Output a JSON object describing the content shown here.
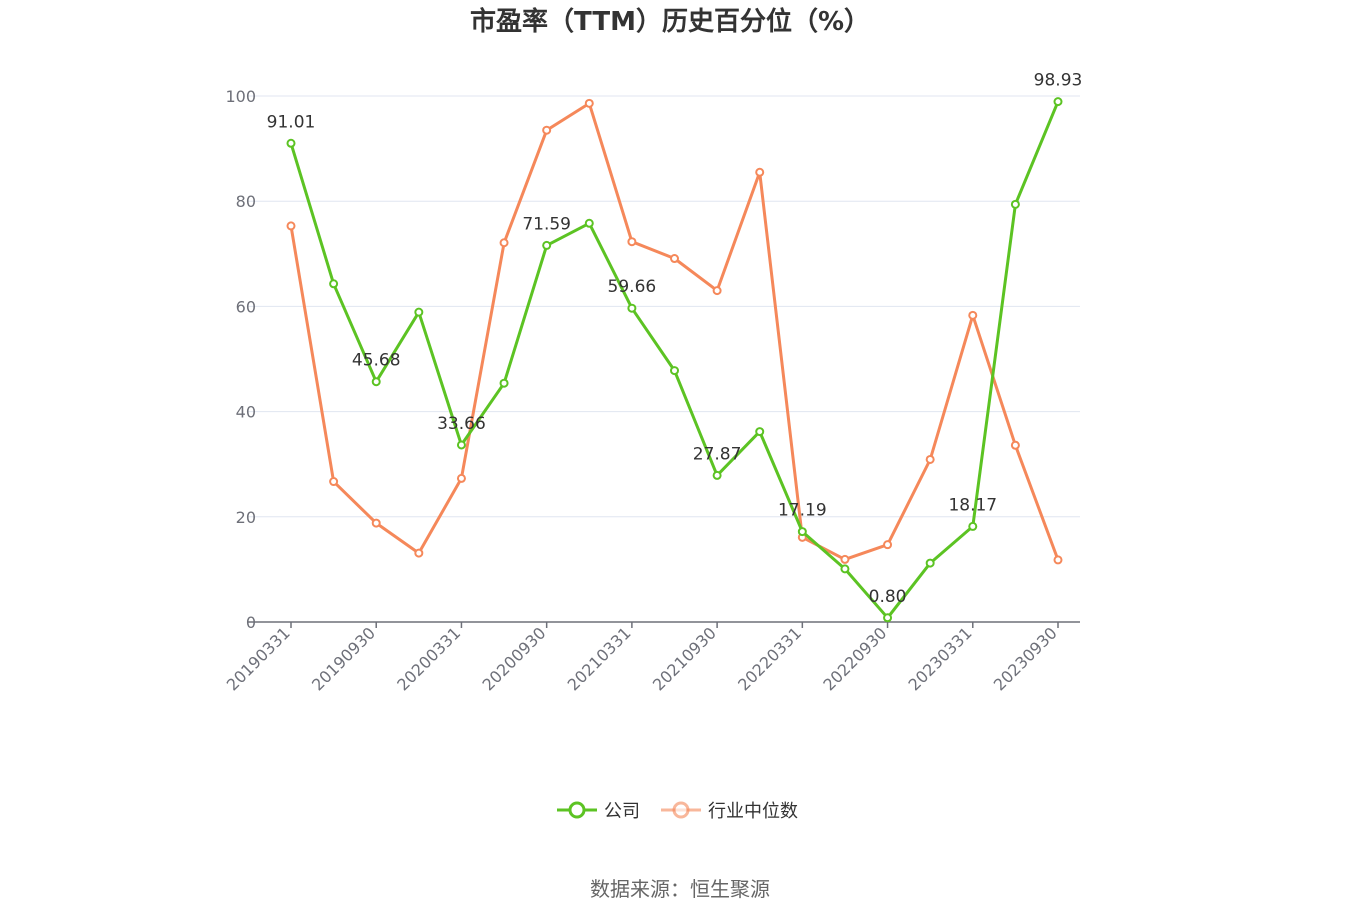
{
  "chart_data": {
    "type": "line",
    "title": "市盈率（TTM）历史百分位（%）",
    "source_text": "数据来源：恒生聚源",
    "ylim": [
      0,
      100
    ],
    "y_ticks": [
      0,
      20,
      40,
      60,
      80,
      100
    ],
    "x": [
      "20190331",
      "20190630",
      "20190930",
      "20191231",
      "20200331",
      "20200630",
      "20200930",
      "20201231",
      "20210331",
      "20210630",
      "20210930",
      "20211231",
      "20220331",
      "20220630",
      "20220930",
      "20221231",
      "20230331",
      "20230630",
      "20230930"
    ],
    "x_tick_labels": [
      "20190331",
      "20190930",
      "20200331",
      "20200930",
      "20210331",
      "20210930",
      "20220331",
      "20220930",
      "20230331",
      "20230930"
    ],
    "grid": true,
    "legend_position": "bottom",
    "series": [
      {
        "name": "公司",
        "color": "#5cc323",
        "values": [
          91.01,
          64.3,
          45.68,
          58.9,
          33.66,
          45.4,
          71.59,
          75.8,
          59.66,
          47.8,
          27.87,
          36.2,
          17.19,
          10.1,
          0.8,
          11.2,
          18.17,
          79.4,
          98.93
        ],
        "labels": [
          "91.01",
          "",
          "45.68",
          "",
          "33.66",
          "",
          "71.59",
          "",
          "59.66",
          "",
          "27.87",
          "",
          "17.19",
          "",
          "0.80",
          "",
          "18.17",
          "",
          "98.93"
        ]
      },
      {
        "name": "行业中位数",
        "color": "#f5885a",
        "values": [
          75.3,
          26.7,
          18.8,
          13.1,
          27.3,
          72.1,
          93.5,
          98.6,
          72.3,
          69.1,
          63.0,
          85.5,
          16.1,
          11.9,
          14.7,
          30.9,
          58.3,
          33.6,
          11.8
        ]
      }
    ]
  }
}
